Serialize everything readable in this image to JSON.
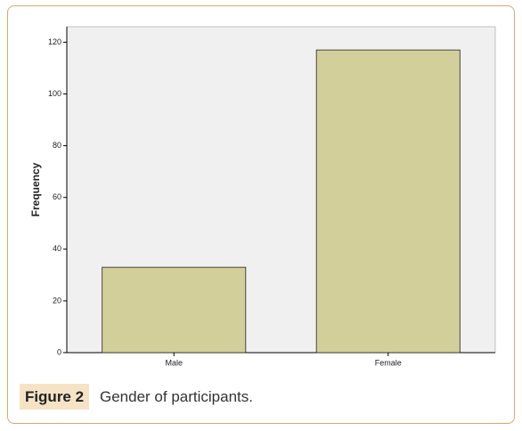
{
  "chart_data": {
    "type": "bar",
    "y_label": "Frequency",
    "categories": [
      "Male",
      "Female"
    ],
    "values": [
      33,
      117
    ],
    "color": "#d2cf9a",
    "ylim": [
      0,
      126
    ],
    "yticks": [
      0,
      20,
      40,
      60,
      80,
      100,
      120
    ],
    "grid": false
  },
  "caption": {
    "label": "Figure 2",
    "text": "Gender of participants."
  }
}
